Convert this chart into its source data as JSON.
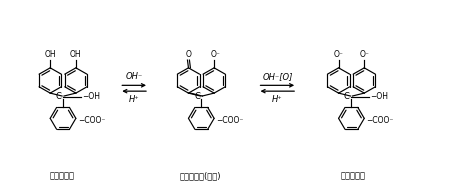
{
  "bg_color": "#ffffff",
  "label1": "酸型，无色",
  "label2": "碱型，红色(醌式)",
  "label3": "盐型，无色",
  "figsize": [
    4.5,
    1.93
  ],
  "dpi": 100
}
